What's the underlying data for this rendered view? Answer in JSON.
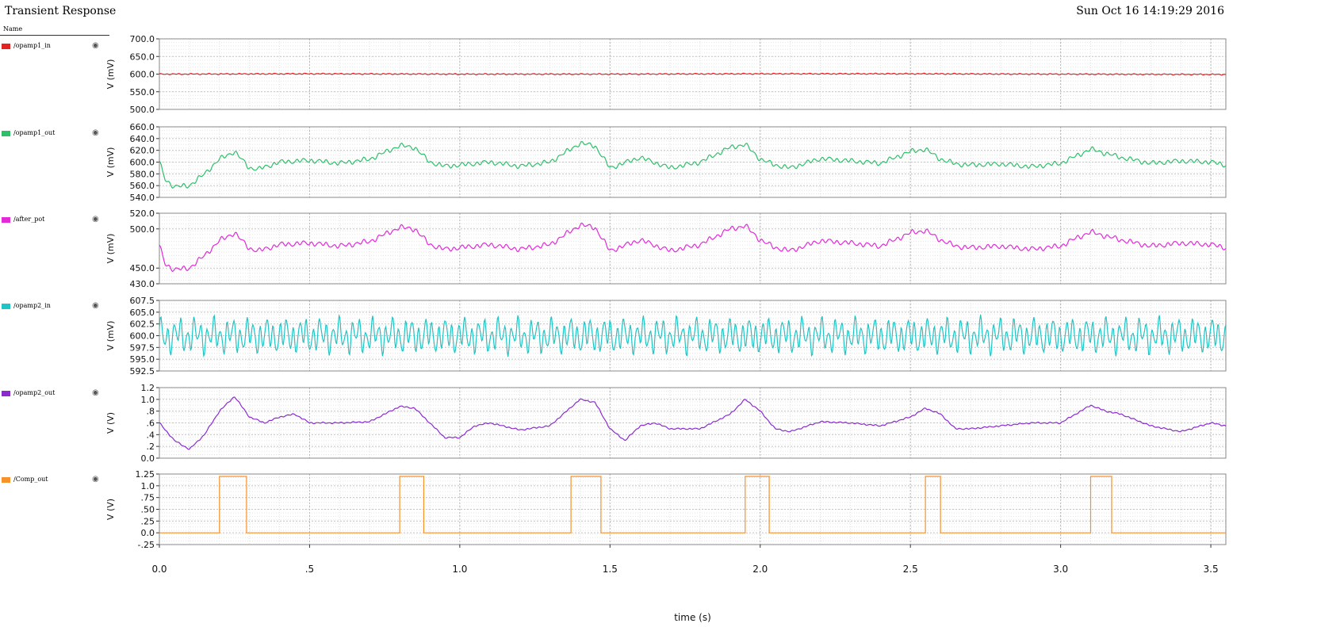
{
  "header": {
    "title": "Transient Response",
    "timestamp": "Sun Oct 16 14:19:29 2016",
    "name_column": "Name"
  },
  "legend": [
    {
      "label": "/opamp1_in",
      "color": "#e52222",
      "icon": "eye-icon"
    },
    {
      "label": "/opamp1_out",
      "color": "#2fbf6a",
      "icon": "eye-icon"
    },
    {
      "label": "/after_pot",
      "color": "#e22ad9",
      "icon": "eye-icon"
    },
    {
      "label": "/opamp2_in",
      "color": "#21c4c4",
      "icon": "eye-icon"
    },
    {
      "label": "/opamp2_out",
      "color": "#8b2ad1",
      "icon": "eye-icon"
    },
    {
      "label": "/Comp_out",
      "color": "#f5922a",
      "icon": "eye-icon"
    }
  ],
  "chart_data": {
    "type": "line",
    "title": "Transient Response",
    "xlabel": "time (s)",
    "xlim": [
      0.0,
      3.55
    ],
    "x_ticks": [
      0.0,
      0.5,
      1.0,
      1.5,
      2.0,
      2.5,
      3.0,
      3.5
    ],
    "x_tick_labels": [
      "0.0",
      ".5",
      "1.0",
      "1.5",
      "2.0",
      "2.5",
      "3.0",
      "3.5"
    ],
    "grid": true,
    "panels": [
      {
        "series": "/opamp1_in",
        "color": "#e52222",
        "ylabel": "V (mV)",
        "ylim": [
          500,
          700
        ],
        "y_ticks": [
          500,
          550,
          600,
          650,
          700
        ],
        "y_tick_labels": [
          "500.0",
          "550.0",
          "600.0",
          "650.0",
          "700.0"
        ],
        "x": [
          0.0,
          0.5,
          1.0,
          1.5,
          2.0,
          2.5,
          3.0,
          3.55
        ],
        "values": [
          600,
          601,
          600,
          600,
          601,
          601,
          600,
          599
        ],
        "noise_amplitude": 2,
        "noise_period": 0.02
      },
      {
        "series": "/opamp1_out",
        "color": "#2fbf6a",
        "ylabel": "V (mV)",
        "ylim": [
          540,
          660
        ],
        "y_ticks": [
          540,
          560,
          580,
          600,
          620,
          640,
          660
        ],
        "y_tick_labels": [
          "540.0",
          "560.0",
          "580.0",
          "600.0",
          "620.0",
          "640.0",
          "660.0"
        ],
        "x": [
          0.0,
          0.02,
          0.05,
          0.1,
          0.15,
          0.2,
          0.25,
          0.3,
          0.33,
          0.4,
          0.5,
          0.6,
          0.7,
          0.8,
          0.85,
          0.9,
          0.95,
          1.0,
          1.1,
          1.2,
          1.3,
          1.4,
          1.45,
          1.5,
          1.6,
          1.7,
          1.8,
          1.9,
          1.95,
          2.0,
          2.05,
          2.1,
          2.2,
          2.3,
          2.4,
          2.5,
          2.55,
          2.6,
          2.65,
          2.7,
          2.8,
          2.9,
          3.0,
          3.05,
          3.1,
          3.15,
          3.2,
          3.3,
          3.4,
          3.5,
          3.55
        ],
        "values": [
          600,
          570,
          558,
          560,
          580,
          605,
          618,
          590,
          588,
          600,
          603,
          598,
          605,
          628,
          625,
          600,
          593,
          595,
          600,
          593,
          600,
          632,
          628,
          590,
          608,
          590,
          600,
          625,
          630,
          605,
          595,
          590,
          606,
          602,
          598,
          618,
          622,
          605,
          597,
          595,
          597,
          592,
          598,
          610,
          622,
          615,
          608,
          598,
          602,
          600,
          595
        ],
        "noise_amplitude": 5,
        "noise_period": 0.025
      },
      {
        "series": "/after_pot",
        "color": "#e22ad9",
        "ylabel": "V (mV)",
        "ylim": [
          430,
          520
        ],
        "y_ticks": [
          430,
          450,
          500,
          520
        ],
        "y_tick_labels": [
          "430.0",
          "450.0",
          "500.0",
          "520.0"
        ],
        "x": [
          0.0,
          0.02,
          0.05,
          0.1,
          0.15,
          0.2,
          0.25,
          0.3,
          0.33,
          0.4,
          0.5,
          0.6,
          0.7,
          0.8,
          0.85,
          0.9,
          0.95,
          1.0,
          1.1,
          1.2,
          1.3,
          1.4,
          1.45,
          1.5,
          1.6,
          1.7,
          1.8,
          1.9,
          1.95,
          2.0,
          2.05,
          2.1,
          2.2,
          2.3,
          2.4,
          2.5,
          2.55,
          2.6,
          2.65,
          2.7,
          2.8,
          2.9,
          3.0,
          3.05,
          3.1,
          3.15,
          3.2,
          3.3,
          3.4,
          3.5,
          3.55
        ],
        "values": [
          478,
          455,
          448,
          450,
          466,
          485,
          495,
          475,
          472,
          480,
          482,
          478,
          484,
          502,
          500,
          480,
          474,
          476,
          480,
          474,
          480,
          505,
          502,
          472,
          486,
          472,
          480,
          500,
          504,
          486,
          476,
          472,
          485,
          482,
          478,
          495,
          498,
          486,
          478,
          476,
          478,
          474,
          478,
          488,
          496,
          491,
          486,
          478,
          482,
          480,
          476
        ],
        "noise_amplitude": 4,
        "noise_period": 0.025
      },
      {
        "series": "/opamp2_in",
        "color": "#21c4c4",
        "ylabel": "V (mV)",
        "ylim": [
          592.5,
          607.5
        ],
        "y_ticks": [
          592.5,
          595.0,
          597.5,
          600.0,
          602.5,
          605.0,
          607.5
        ],
        "y_tick_labels": [
          "592.5",
          "595.0",
          "597.5",
          "600.0",
          "602.5",
          "605.0",
          "607.5"
        ],
        "x": [
          0.0,
          3.55
        ],
        "values": [
          600.0,
          600.0
        ],
        "noise_amplitude": 4.5,
        "noise_period": 0.022
      },
      {
        "series": "/opamp2_out",
        "color": "#8b2ad1",
        "ylabel": "V (V)",
        "ylim": [
          0.0,
          1.2
        ],
        "y_ticks": [
          0.0,
          0.2,
          0.4,
          0.6,
          0.8,
          1.0,
          1.2
        ],
        "y_tick_labels": [
          "0.0",
          ".2",
          ".4",
          ".6",
          ".8",
          "1.0",
          "1.2"
        ],
        "x": [
          0.0,
          0.05,
          0.1,
          0.15,
          0.2,
          0.25,
          0.3,
          0.35,
          0.4,
          0.45,
          0.5,
          0.6,
          0.7,
          0.8,
          0.85,
          0.9,
          0.95,
          1.0,
          1.05,
          1.1,
          1.2,
          1.3,
          1.4,
          1.45,
          1.5,
          1.55,
          1.6,
          1.65,
          1.7,
          1.8,
          1.9,
          1.95,
          2.0,
          2.05,
          2.1,
          2.2,
          2.3,
          2.4,
          2.5,
          2.55,
          2.6,
          2.65,
          2.7,
          2.8,
          2.9,
          3.0,
          3.1,
          3.15,
          3.2,
          3.3,
          3.4,
          3.5,
          3.55
        ],
        "values": [
          0.6,
          0.3,
          0.15,
          0.4,
          0.8,
          1.05,
          0.7,
          0.6,
          0.7,
          0.75,
          0.6,
          0.6,
          0.62,
          0.88,
          0.85,
          0.6,
          0.35,
          0.35,
          0.55,
          0.6,
          0.48,
          0.55,
          1.0,
          0.95,
          0.5,
          0.3,
          0.55,
          0.6,
          0.5,
          0.5,
          0.75,
          1.0,
          0.8,
          0.5,
          0.45,
          0.62,
          0.6,
          0.55,
          0.7,
          0.85,
          0.75,
          0.5,
          0.5,
          0.55,
          0.6,
          0.6,
          0.9,
          0.8,
          0.75,
          0.55,
          0.45,
          0.6,
          0.55
        ],
        "noise_amplitude": 0.015,
        "noise_period": 0.02
      },
      {
        "series": "/Comp_out",
        "color": "#f5922a",
        "ylabel": "V (V)",
        "ylim": [
          -0.25,
          1.25
        ],
        "y_ticks": [
          -0.25,
          0.0,
          0.25,
          0.5,
          0.75,
          1.0,
          1.25
        ],
        "y_tick_labels": [
          "-.25",
          "0.0",
          ".25",
          ".50",
          ".75",
          "1.0",
          "1.25"
        ],
        "x": [
          0.0,
          0.2,
          0.2,
          0.29,
          0.29,
          0.8,
          0.8,
          0.88,
          0.88,
          1.37,
          1.37,
          1.47,
          1.47,
          1.95,
          1.95,
          2.03,
          2.03,
          2.55,
          2.55,
          2.6,
          2.6,
          3.1,
          3.1,
          3.17,
          3.17,
          3.55
        ],
        "values": [
          0.0,
          0.0,
          1.2,
          1.2,
          0.0,
          0.0,
          1.2,
          1.2,
          0.0,
          0.0,
          1.2,
          1.2,
          0.0,
          0.0,
          1.2,
          1.2,
          0.0,
          0.0,
          1.2,
          1.2,
          0.0,
          0.0,
          1.2,
          1.2,
          0.0,
          0.0
        ],
        "noise_amplitude": 0,
        "noise_period": 0.02
      }
    ]
  }
}
